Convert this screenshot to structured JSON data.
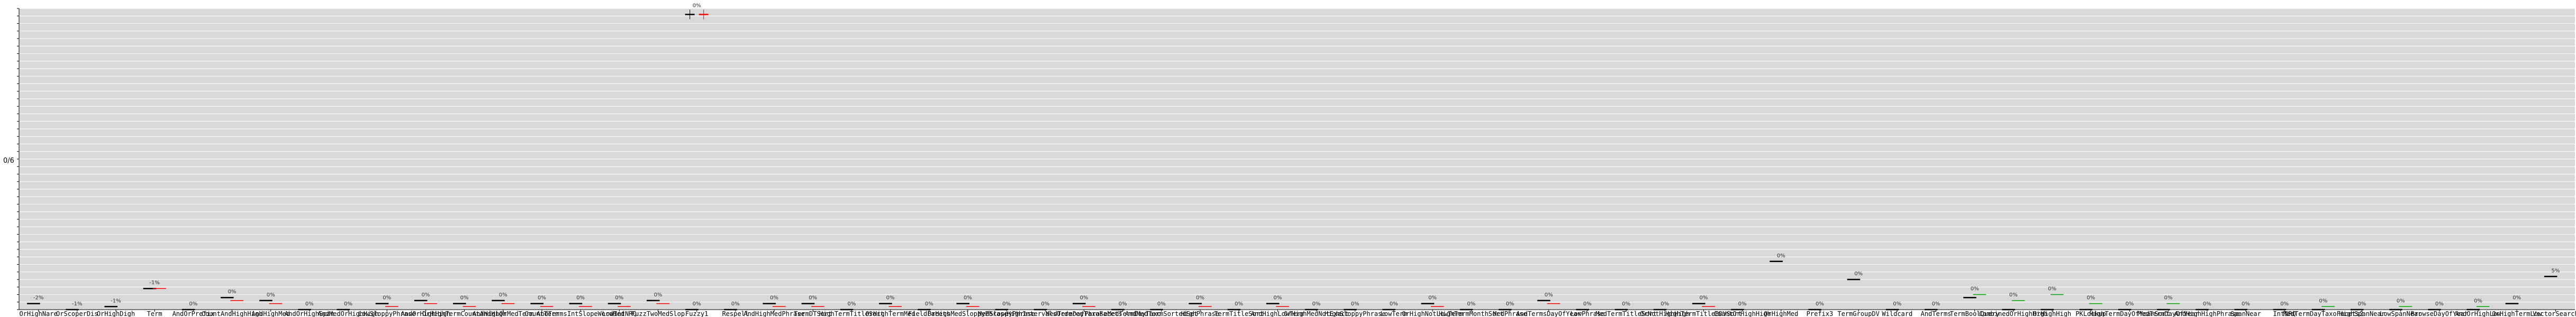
{
  "chart_data": {
    "type": "line",
    "ylabel": "0/6",
    "grid": true,
    "ylim": [
      0,
      1
    ],
    "categories": [
      "OrHighNare",
      "OrScoperDis",
      "OrHighDigh",
      "Term",
      "AndOrPrefix",
      "CountAndHighHigh",
      "AndHighMed",
      "AndOrHighSpan",
      "AndMedOrHighHigh",
      "LowSloppyPhrase",
      "AndOrHighHigh",
      "OrHighTermCountAndHigh",
      "AndHighOrMedTerm",
      "CountTerm",
      "AndTermsIntSlopeWordMed",
      "LowIntNRQ",
      "FuzzTwoMedSlop",
      "Fuzzy1",
      "Respell",
      "AndHighMedPhrase",
      "TermDTSort",
      "HighTermTitleSort",
      "OrHighTermMed",
      "FieldFacets",
      "OrHighMedSloppyPhrase",
      "MedSloppyPhrase",
      "HighIntervalsOrdered",
      "MedTermDayTaxoFacets",
      "PhraseMedTermDayTaxo",
      "AndMedTermSortedSet",
      "HighPhrase",
      "TermTitleSort",
      "AndHighLowTerm",
      "OrHighMedNotExact",
      "HighSloppyPhrase",
      "LowTerm",
      "OrHighNotLowTerm",
      "HighTermMonthSort",
      "MedPhrase",
      "AndTermsDayOfYear",
      "LowPhrase",
      "MedTermTitleSort",
      "OrNotHighHigh",
      "HighTermTitleBDVSort",
      "CountOrHighHigh",
      "OrHighMed",
      "Prefix3",
      "TermGroupDV",
      "Wildcard",
      "AndTerms",
      "TermBoolQuery",
      "CombinedOrHighHigh",
      "OrHighHigh",
      "PKLookup",
      "HighTermDayOfYearSort",
      "MedTermDayOfYear",
      "AndHighHighPhrase",
      "SpanNear",
      "IntNRQ",
      "MedTermDayTaxoFacets2",
      "HighSpanNear",
      "LowSpanNear",
      "BrowseDayOfYear",
      "AndOrHighLow",
      "OrHighTermLow",
      "VectorSearch"
    ],
    "series": [
      {
        "color": "#000000",
        "values": [
          0.02,
          0.0,
          0.01,
          0.07,
          0.0,
          0.04,
          0.03,
          0.0,
          0.0,
          0.02,
          0.03,
          0.02,
          0.03,
          0.02,
          0.02,
          0.02,
          0.03,
          0.0,
          0.0,
          0.02,
          0.02,
          0.0,
          0.02,
          0.0,
          0.02,
          0.0,
          0.0,
          0.02,
          0.0,
          0.0,
          0.02,
          0.0,
          0.02,
          0.0,
          0.0,
          0.0,
          0.02,
          0.0,
          0.0,
          0.03,
          0.0,
          0.0,
          0.0,
          0.02,
          0.0,
          0.16,
          0.0,
          0.1,
          0.0,
          0.0,
          0.04,
          0.0,
          0.0,
          0.0,
          0.0,
          0.0,
          0.0,
          0.0,
          0.0,
          0.0,
          0.0,
          0.0,
          0.0,
          0.0,
          0.02,
          0.11
        ]
      },
      {
        "color": "#ff0000",
        "values": [
          0.0,
          0.0,
          0.0,
          0.07,
          0.0,
          0.03,
          0.02,
          0.0,
          0.0,
          0.01,
          0.02,
          0.01,
          0.02,
          0.01,
          0.01,
          0.01,
          0.02,
          0.0,
          0.0,
          0.01,
          0.01,
          0.0,
          0.01,
          0.0,
          0.01,
          0.0,
          0.0,
          0.01,
          0.0,
          0.0,
          0.01,
          0.0,
          0.01,
          0.0,
          0.0,
          0.0,
          0.01,
          0.0,
          0.0,
          0.02,
          0.0,
          0.0,
          0.0,
          0.01,
          0.0,
          0.0,
          0.0,
          0.0,
          0.0,
          0.0,
          0.0,
          0.0,
          0.0,
          0.0,
          0.0,
          0.0,
          0.0,
          0.0,
          0.0,
          0.0,
          0.0,
          0.0,
          0.0,
          0.0,
          0.0,
          0.0
        ]
      },
      {
        "color": "#00aa00",
        "values": [
          0.0,
          0.0,
          0.0,
          0.0,
          0.0,
          0.0,
          0.0,
          0.0,
          0.0,
          0.0,
          0.0,
          0.0,
          0.0,
          0.0,
          0.0,
          0.0,
          0.0,
          0.0,
          0.0,
          0.0,
          0.0,
          0.0,
          0.0,
          0.0,
          0.0,
          0.0,
          0.0,
          0.0,
          0.0,
          0.0,
          0.0,
          0.0,
          0.0,
          0.0,
          0.0,
          0.0,
          0.0,
          0.0,
          0.0,
          0.0,
          0.0,
          0.0,
          0.0,
          0.0,
          0.0,
          0.0,
          0.0,
          0.0,
          0.0,
          0.0,
          0.05,
          0.03,
          0.05,
          0.02,
          0.0,
          0.02,
          0.0,
          0.0,
          0.0,
          0.01,
          0.0,
          0.01,
          0.0,
          0.01,
          0.0,
          0.0
        ]
      }
    ],
    "percent_labels": [
      "-2%",
      "-1%",
      "-1%",
      "-1%",
      "0%",
      "0%",
      "0%",
      "0%",
      "0%",
      "0%",
      "0%",
      "0%",
      "0%",
      "0%",
      "0%",
      "0%",
      "0%",
      "0%",
      "0%",
      "0%",
      "0%",
      "0%",
      "0%",
      "0%",
      "0%",
      "0%",
      "0%",
      "0%",
      "0%",
      "0%",
      "0%",
      "0%",
      "0%",
      "0%",
      "0%",
      "0%",
      "0%",
      "0%",
      "0%",
      "0%",
      "0%",
      "0%",
      "0%",
      "0%",
      "0%",
      "0%",
      "0%",
      "0%",
      "0%",
      "0%",
      "0%",
      "0%",
      "0%",
      "0%",
      "0%",
      "0%",
      "0%",
      "0%",
      "0%",
      "0%",
      "0%",
      "0%",
      "0%",
      "0%",
      "0%",
      "5%"
    ],
    "outlier": {
      "category_index": 17,
      "value": 0.98,
      "label": "0%"
    }
  }
}
